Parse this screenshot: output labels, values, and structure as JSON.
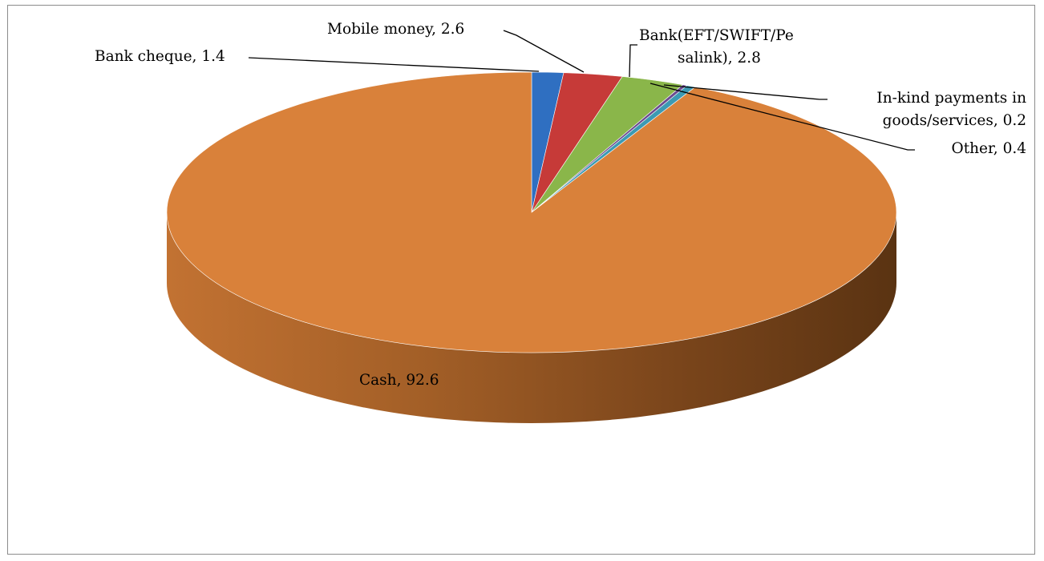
{
  "chart_data": {
    "type": "pie",
    "three_d": true,
    "slices": [
      {
        "name": "Bank cheque",
        "value": 1.4,
        "color": "#2f6fc1",
        "label_lines": [
          "Bank cheque, 1.4"
        ]
      },
      {
        "name": "Mobile money",
        "value": 2.6,
        "color": "#c63a38",
        "label_lines": [
          "Mobile money, 2.6"
        ]
      },
      {
        "name": "Bank(EFT/SWIFT/Pesalink)",
        "value": 2.8,
        "color": "#8ab64a",
        "label_lines": [
          "Bank(EFT/SWIFT/Pe",
          "salink), 2.8"
        ]
      },
      {
        "name": "In-kind payments in goods/services",
        "value": 0.2,
        "color": "#6c4b8f",
        "label_lines": [
          "In-kind payments in",
          "goods/services, 0.2"
        ]
      },
      {
        "name": "Other",
        "value": 0.4,
        "color": "#3c9ab3",
        "label_lines": [
          "Other, 0.4"
        ]
      },
      {
        "name": "Cash",
        "value": 92.6,
        "color": "#d9813a",
        "label_lines": [
          "Cash, 92.6"
        ]
      }
    ]
  }
}
